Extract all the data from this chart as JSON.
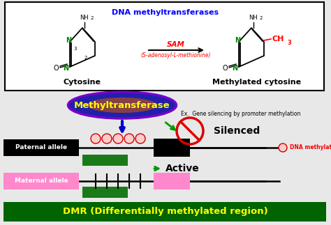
{
  "bg_color": "#e8e8e8",
  "box_bg": "#ffffff",
  "title_dna_methyl": "DNA methyltransferases",
  "title_dna_color": "#0000ff",
  "sam_text": "SAM",
  "sam_color": "#ff0000",
  "sam_sub": "(S-adenosyl-L-methionine)",
  "cytosine_label": "Cytosine",
  "methyl_cytosine_label": "Methylated cytosine",
  "ch3_color": "#ff0000",
  "methyltransferase_text": "Methyltransferase",
  "ex_text": "Ex.  Gene silencing by promoter methylation",
  "silenced_text": "Silenced",
  "active_text": "Active",
  "paternal_text": "Paternal allele",
  "maternal_text": "Maternal allele",
  "dna_methyl_legend": "DNA methylation",
  "dmr_text": "DMR (Differentially methylated region)",
  "dmr_bg": "#006400",
  "dmr_text_color": "#ffff00",
  "dmr_green": "#1a7a1a",
  "arrow_blue": "#0000cc",
  "arrow_green": "#009900",
  "line_color": "#000000",
  "circle_fill": "#ffcccc",
  "circle_edge": "#cc0000",
  "no_entry_color": "#dd0000",
  "paternal_fill": "#000000",
  "maternal_fill": "#ff88cc",
  "gene_pat_fill": "#000000",
  "gene_mat_fill": "#ff88cc",
  "ellipse_outer": "#2020aa",
  "ellipse_inner": "#cc5500",
  "ellipse_text": "#ffff00"
}
